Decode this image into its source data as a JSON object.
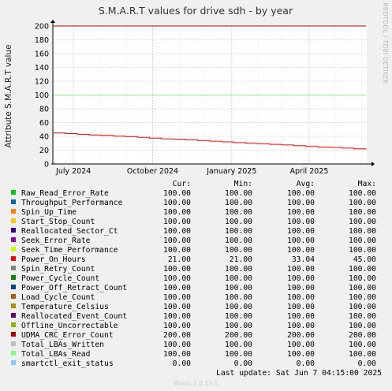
{
  "chart_data": {
    "type": "line",
    "title": "S.M.A.R.T values for drive sdh - by year",
    "ylabel": "Attribute S.M.A.R.T value",
    "side_label": "RRDTOOL / TOBI OETIKER",
    "ylim": [
      0,
      200
    ],
    "yticks": [
      0,
      20,
      40,
      60,
      80,
      100,
      120,
      140,
      160,
      180,
      200
    ],
    "x_range": [
      "2024-06-07",
      "2025-06-07"
    ],
    "xticks": [
      {
        "label": "July 2024",
        "date": "2024-07-01"
      },
      {
        "label": "October 2024",
        "date": "2024-10-01"
      },
      {
        "label": "January 2025",
        "date": "2025-01-01"
      },
      {
        "label": "April 2025",
        "date": "2025-04-01"
      }
    ],
    "grid": true,
    "columns": [
      "Cur:",
      "Min:",
      "Avg:",
      "Max:"
    ],
    "series": [
      {
        "name": "Raw_Read_Error_Rate",
        "color": "#00cc00",
        "cur": "100.00",
        "min": "100.00",
        "avg": "100.00",
        "max": "100.00"
      },
      {
        "name": "Throughput_Performance",
        "color": "#0066b3",
        "cur": "100.00",
        "min": "100.00",
        "avg": "100.00",
        "max": "100.00"
      },
      {
        "name": "Spin_Up_Time",
        "color": "#ff8000",
        "cur": "100.00",
        "min": "100.00",
        "avg": "100.00",
        "max": "100.00"
      },
      {
        "name": "Start_Stop_Count",
        "color": "#ffcc00",
        "cur": "100.00",
        "min": "100.00",
        "avg": "100.00",
        "max": "100.00"
      },
      {
        "name": "Reallocated_Sector_Ct",
        "color": "#330099",
        "cur": "100.00",
        "min": "100.00",
        "avg": "100.00",
        "max": "100.00"
      },
      {
        "name": "Seek_Error_Rate",
        "color": "#990099",
        "cur": "100.00",
        "min": "100.00",
        "avg": "100.00",
        "max": "100.00"
      },
      {
        "name": "Seek_Time_Performance",
        "color": "#ccff00",
        "cur": "100.00",
        "min": "100.00",
        "avg": "100.00",
        "max": "100.00"
      },
      {
        "name": "Power_On_Hours",
        "color": "#ff0000",
        "cur": "21.00",
        "min": "21.00",
        "avg": "33.04",
        "max": "45.00"
      },
      {
        "name": "Spin_Retry_Count",
        "color": "#808080",
        "cur": "100.00",
        "min": "100.00",
        "avg": "100.00",
        "max": "100.00"
      },
      {
        "name": "Power_Cycle_Count",
        "color": "#008f00",
        "cur": "100.00",
        "min": "100.00",
        "avg": "100.00",
        "max": "100.00"
      },
      {
        "name": "Power_Off_Retract_Count",
        "color": "#00487d",
        "cur": "100.00",
        "min": "100.00",
        "avg": "100.00",
        "max": "100.00"
      },
      {
        "name": "Load_Cycle_Count",
        "color": "#b35a00",
        "cur": "100.00",
        "min": "100.00",
        "avg": "100.00",
        "max": "100.00"
      },
      {
        "name": "Temperature_Celsius",
        "color": "#b38f00",
        "cur": "100.00",
        "min": "100.00",
        "avg": "100.00",
        "max": "100.00"
      },
      {
        "name": "Reallocated_Event_Count",
        "color": "#6b006b",
        "cur": "100.00",
        "min": "100.00",
        "avg": "100.00",
        "max": "100.00"
      },
      {
        "name": "Offline_Uncorrectable",
        "color": "#8fb300",
        "cur": "100.00",
        "min": "100.00",
        "avg": "100.00",
        "max": "100.00"
      },
      {
        "name": "UDMA_CRC_Error_Count",
        "color": "#b30000",
        "cur": "200.00",
        "min": "200.00",
        "avg": "200.00",
        "max": "200.00"
      },
      {
        "name": "Total_LBAs_Written",
        "color": "#bebebe",
        "cur": "100.00",
        "min": "100.00",
        "avg": "100.00",
        "max": "100.00"
      },
      {
        "name": "Total_LBAs_Read",
        "color": "#80ff80",
        "cur": "100.00",
        "min": "100.00",
        "avg": "100.00",
        "max": "100.00"
      },
      {
        "name": "smartctl_exit_status",
        "color": "#80c9ff",
        "cur": "0.00",
        "min": "0.00",
        "avg": "0.00",
        "max": "0.00"
      }
    ],
    "last_update": "Last update:  Sat Jun  7 04:15:00 2025",
    "footer": "Munin 2.0.33-1"
  }
}
